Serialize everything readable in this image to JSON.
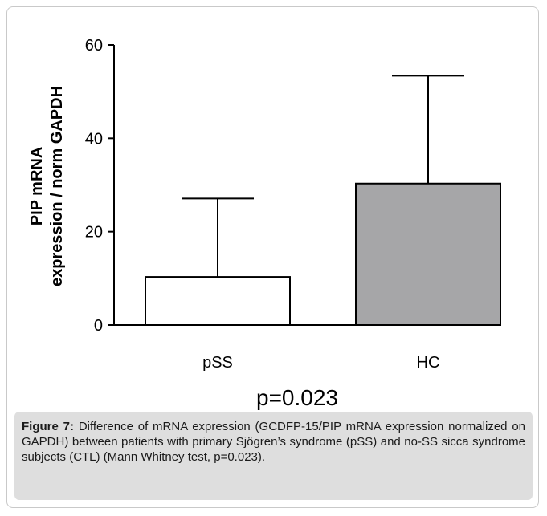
{
  "chart_data": {
    "type": "bar",
    "categories": [
      "pSS",
      "HC"
    ],
    "values": [
      10.3,
      30.3
    ],
    "error_upper": [
      27.1,
      53.4
    ],
    "colors": [
      "#ffffff",
      "#a6a6a8"
    ],
    "ylabel_line1": "PIP mRNA",
    "ylabel_line2": "expression / norm GAPDH",
    "ylim": [
      0,
      60
    ],
    "yticks": [
      0,
      20,
      40,
      60
    ],
    "annotation": "p=0.023",
    "grid": false
  },
  "caption": {
    "label": "Figure 7:",
    "text": " Difference of mRNA expression (GCDFP-15/PIP mRNA expression normalized on GAPDH) between patients with primary Sjögren’s syndrome (pSS) and no-SS sicca syndrome subjects (CTL) (Mann Whitney test, p=0.023)."
  }
}
